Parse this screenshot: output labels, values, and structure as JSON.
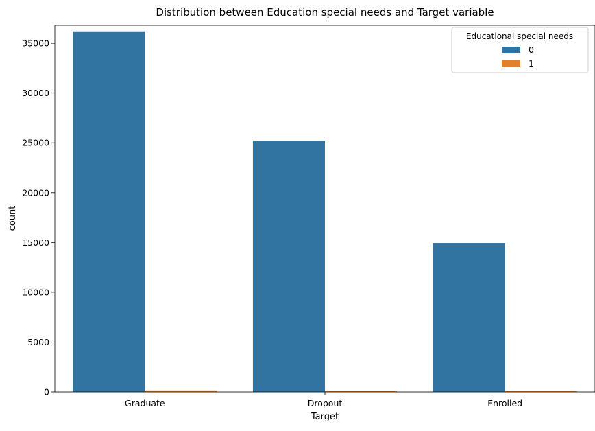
{
  "chart_data": {
    "type": "bar",
    "title": "Distribution between Education special needs and Target variable",
    "xlabel": "Target",
    "ylabel": "count",
    "categories": [
      "Graduate",
      "Dropout",
      "Enrolled"
    ],
    "series": [
      {
        "name": "0",
        "color": "#3274a1",
        "values": [
          36200,
          25200,
          14950
        ]
      },
      {
        "name": "1",
        "color": "#e1812c",
        "values": [
          150,
          120,
          80
        ]
      }
    ],
    "ylim": [
      0,
      36800
    ],
    "yticks": [
      0,
      5000,
      10000,
      15000,
      20000,
      25000,
      30000,
      35000
    ],
    "grid": false,
    "legend": {
      "title": "Educational special needs",
      "position": "top-right"
    }
  }
}
